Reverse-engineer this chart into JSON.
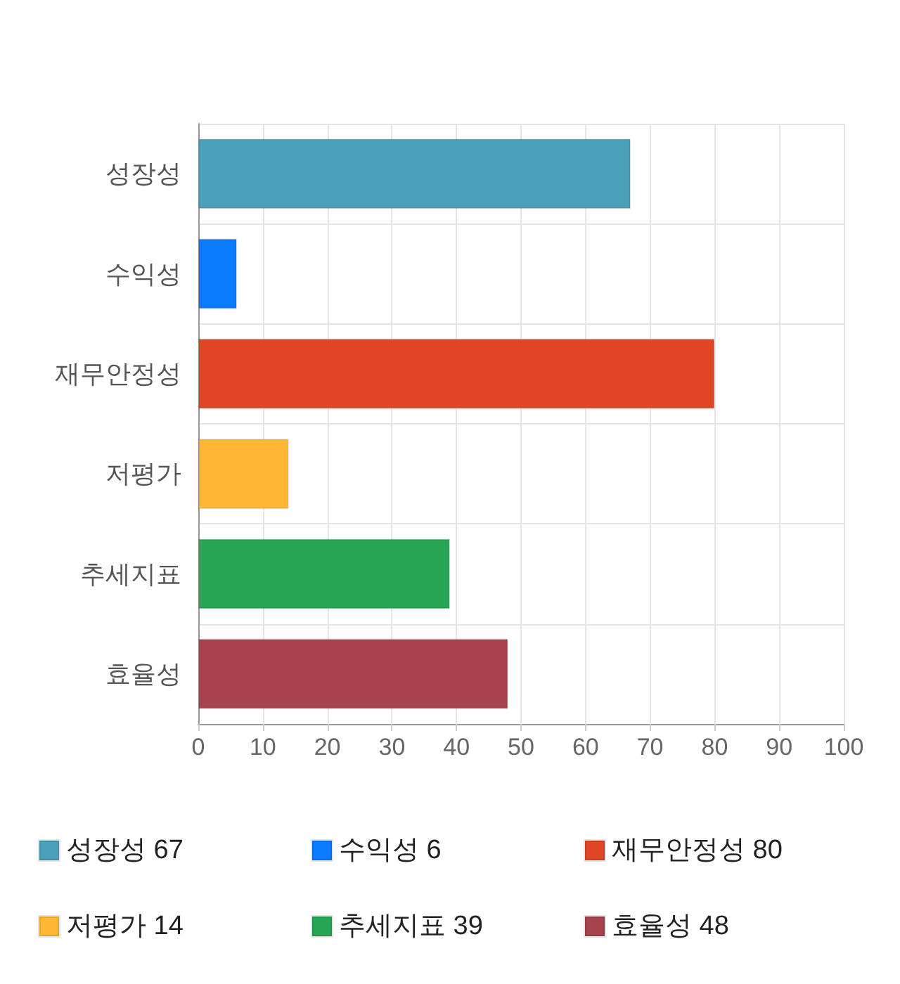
{
  "chart_data": {
    "type": "bar",
    "orientation": "horizontal",
    "categories": [
      "성장성",
      "수익성",
      "재무안정성",
      "저평가",
      "추세지표",
      "효율성"
    ],
    "series": [
      {
        "name": "성장성 67",
        "color": "#4aa0b8",
        "values": [
          67,
          null,
          null,
          null,
          null,
          null
        ]
      },
      {
        "name": "수익성 6",
        "color": "#0b7bff",
        "values": [
          null,
          6,
          null,
          null,
          null,
          null
        ]
      },
      {
        "name": "재무안정성 80",
        "color": "#e04525",
        "values": [
          null,
          null,
          80,
          null,
          null,
          null
        ]
      },
      {
        "name": "저평가 14",
        "color": "#ffb833",
        "values": [
          null,
          null,
          null,
          14,
          null,
          null
        ]
      },
      {
        "name": "추세지표 39",
        "color": "#28a656",
        "values": [
          null,
          null,
          null,
          null,
          39,
          null
        ]
      },
      {
        "name": "효율성 48",
        "color": "#a8424f",
        "values": [
          null,
          null,
          null,
          null,
          null,
          48
        ]
      }
    ],
    "xlim": [
      0,
      100
    ],
    "xticks": [
      0,
      10,
      20,
      30,
      40,
      50,
      60,
      70,
      80,
      90,
      100
    ],
    "grid": true,
    "legend": "bottom"
  }
}
